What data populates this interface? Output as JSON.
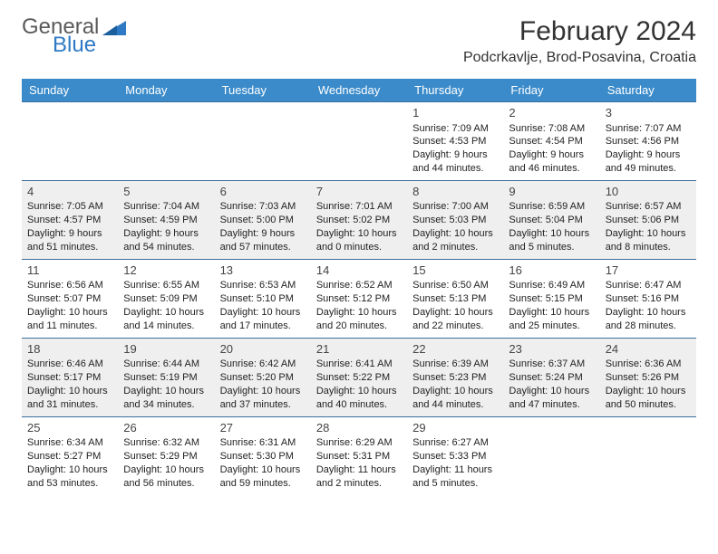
{
  "brand": {
    "line1": "General",
    "line2": "Blue",
    "grey": "#5a5a5a",
    "blue": "#2f7ac4"
  },
  "title": "February 2024",
  "location": "Podcrkavlje, Brod-Posavina, Croatia",
  "colors": {
    "header_bg": "#3b8bca",
    "header_fg": "#ffffff",
    "rule": "#3b6e9e",
    "row_alt": "#efefef",
    "row_base": "#ffffff"
  },
  "weekdays": [
    "Sunday",
    "Monday",
    "Tuesday",
    "Wednesday",
    "Thursday",
    "Friday",
    "Saturday"
  ],
  "weeks": [
    [
      null,
      null,
      null,
      null,
      {
        "n": "1",
        "sr": "7:09 AM",
        "ss": "4:53 PM",
        "dl": "9 hours and 44 minutes."
      },
      {
        "n": "2",
        "sr": "7:08 AM",
        "ss": "4:54 PM",
        "dl": "9 hours and 46 minutes."
      },
      {
        "n": "3",
        "sr": "7:07 AM",
        "ss": "4:56 PM",
        "dl": "9 hours and 49 minutes."
      }
    ],
    [
      {
        "n": "4",
        "sr": "7:05 AM",
        "ss": "4:57 PM",
        "dl": "9 hours and 51 minutes."
      },
      {
        "n": "5",
        "sr": "7:04 AM",
        "ss": "4:59 PM",
        "dl": "9 hours and 54 minutes."
      },
      {
        "n": "6",
        "sr": "7:03 AM",
        "ss": "5:00 PM",
        "dl": "9 hours and 57 minutes."
      },
      {
        "n": "7",
        "sr": "7:01 AM",
        "ss": "5:02 PM",
        "dl": "10 hours and 0 minutes."
      },
      {
        "n": "8",
        "sr": "7:00 AM",
        "ss": "5:03 PM",
        "dl": "10 hours and 2 minutes."
      },
      {
        "n": "9",
        "sr": "6:59 AM",
        "ss": "5:04 PM",
        "dl": "10 hours and 5 minutes."
      },
      {
        "n": "10",
        "sr": "6:57 AM",
        "ss": "5:06 PM",
        "dl": "10 hours and 8 minutes."
      }
    ],
    [
      {
        "n": "11",
        "sr": "6:56 AM",
        "ss": "5:07 PM",
        "dl": "10 hours and 11 minutes."
      },
      {
        "n": "12",
        "sr": "6:55 AM",
        "ss": "5:09 PM",
        "dl": "10 hours and 14 minutes."
      },
      {
        "n": "13",
        "sr": "6:53 AM",
        "ss": "5:10 PM",
        "dl": "10 hours and 17 minutes."
      },
      {
        "n": "14",
        "sr": "6:52 AM",
        "ss": "5:12 PM",
        "dl": "10 hours and 20 minutes."
      },
      {
        "n": "15",
        "sr": "6:50 AM",
        "ss": "5:13 PM",
        "dl": "10 hours and 22 minutes."
      },
      {
        "n": "16",
        "sr": "6:49 AM",
        "ss": "5:15 PM",
        "dl": "10 hours and 25 minutes."
      },
      {
        "n": "17",
        "sr": "6:47 AM",
        "ss": "5:16 PM",
        "dl": "10 hours and 28 minutes."
      }
    ],
    [
      {
        "n": "18",
        "sr": "6:46 AM",
        "ss": "5:17 PM",
        "dl": "10 hours and 31 minutes."
      },
      {
        "n": "19",
        "sr": "6:44 AM",
        "ss": "5:19 PM",
        "dl": "10 hours and 34 minutes."
      },
      {
        "n": "20",
        "sr": "6:42 AM",
        "ss": "5:20 PM",
        "dl": "10 hours and 37 minutes."
      },
      {
        "n": "21",
        "sr": "6:41 AM",
        "ss": "5:22 PM",
        "dl": "10 hours and 40 minutes."
      },
      {
        "n": "22",
        "sr": "6:39 AM",
        "ss": "5:23 PM",
        "dl": "10 hours and 44 minutes."
      },
      {
        "n": "23",
        "sr": "6:37 AM",
        "ss": "5:24 PM",
        "dl": "10 hours and 47 minutes."
      },
      {
        "n": "24",
        "sr": "6:36 AM",
        "ss": "5:26 PM",
        "dl": "10 hours and 50 minutes."
      }
    ],
    [
      {
        "n": "25",
        "sr": "6:34 AM",
        "ss": "5:27 PM",
        "dl": "10 hours and 53 minutes."
      },
      {
        "n": "26",
        "sr": "6:32 AM",
        "ss": "5:29 PM",
        "dl": "10 hours and 56 minutes."
      },
      {
        "n": "27",
        "sr": "6:31 AM",
        "ss": "5:30 PM",
        "dl": "10 hours and 59 minutes."
      },
      {
        "n": "28",
        "sr": "6:29 AM",
        "ss": "5:31 PM",
        "dl": "11 hours and 2 minutes."
      },
      {
        "n": "29",
        "sr": "6:27 AM",
        "ss": "5:33 PM",
        "dl": "11 hours and 5 minutes."
      },
      null,
      null
    ]
  ],
  "labels": {
    "sunrise": "Sunrise:",
    "sunset": "Sunset:",
    "daylight": "Daylight:"
  }
}
